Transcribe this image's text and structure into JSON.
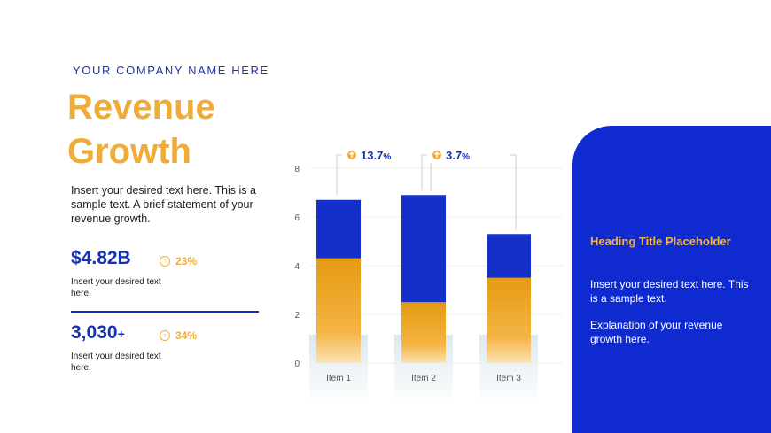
{
  "company_name": "YOUR COMPANY NAME HERE",
  "title_line1": "Revenue",
  "title_line2": "Growth",
  "intro_text": "Insert your desired text here. This is a sample text. A brief statement of your revenue growth.",
  "metrics": [
    {
      "prefix": "$",
      "value": "4.82B",
      "unit": "",
      "growth": "23%",
      "desc": "Insert your desired text here."
    },
    {
      "prefix": "",
      "value": "3,030",
      "unit": "+",
      "growth": "34%",
      "desc": "Insert your desired text here."
    }
  ],
  "panel": {
    "heading": "Heading Title Placeholder",
    "text1": "Insert your desired text here. This is a sample text.",
    "text2": "Explanation of your revenue growth here."
  },
  "colors": {
    "accent_orange": "#f0ac38",
    "brand_blue": "#1431b4",
    "panel_blue": "#0f2bd0"
  },
  "chart_data": {
    "type": "bar",
    "stacked": true,
    "categories": [
      "Item 1",
      "Item 2",
      "Item 3"
    ],
    "series": [
      {
        "values": [
          4.3,
          2.5,
          3.5
        ],
        "color": "#f0a526"
      },
      {
        "values": [
          2.4,
          4.4,
          1.8
        ],
        "color": "#1530c8"
      }
    ],
    "ylim": [
      0,
      8
    ],
    "yticks": [
      0,
      2,
      4,
      6,
      8
    ],
    "grid": true,
    "annotations": [
      {
        "from": 0,
        "to": 1,
        "label": "13.7",
        "suffix": "%"
      },
      {
        "from": 1,
        "to": 2,
        "label": "3.7",
        "suffix": "%"
      }
    ]
  }
}
